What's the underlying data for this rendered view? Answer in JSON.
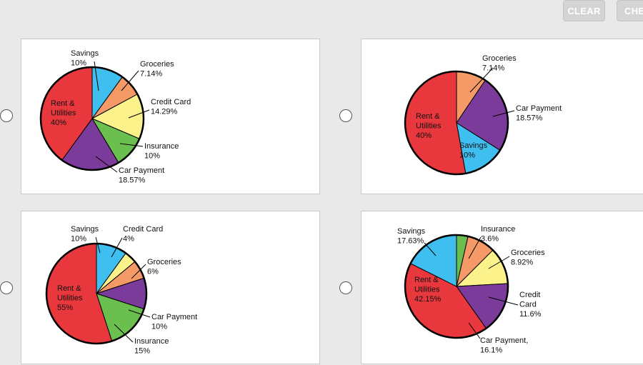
{
  "toolbar": {
    "clear_label": "CLEAR",
    "check_label": "CHE"
  },
  "colors": {
    "rent": "#e8383d",
    "savings": "#3fbfef",
    "groceries": "#f59a66",
    "credit_card": "#fbf28b",
    "insurance": "#6bbf4e",
    "car_payment": "#7b3b9a"
  },
  "chart_data": [
    {
      "type": "pie",
      "slices": [
        {
          "name": "Savings",
          "value": 10,
          "color": "#3fbfef",
          "lines": [
            "Savings",
            "10%"
          ]
        },
        {
          "name": "Groceries",
          "value": 7.14,
          "color": "#f59a66",
          "lines": [
            "Groceries",
            "7.14%"
          ]
        },
        {
          "name": "Credit Card",
          "value": 14.29,
          "color": "#fbf28b",
          "lines": [
            "Credit Card",
            "14.29%"
          ]
        },
        {
          "name": "Insurance",
          "value": 10,
          "color": "#6bbf4e",
          "lines": [
            "Insurance",
            "10%"
          ]
        },
        {
          "name": "Car Payment",
          "value": 18.57,
          "color": "#7b3b9a",
          "lines": [
            "Car Payment",
            "18.57%"
          ]
        },
        {
          "name": "Rent & Utilities",
          "value": 40,
          "color": "#e8383d",
          "lines": [
            "Rent &",
            "Utilities",
            "40%"
          ]
        }
      ]
    },
    {
      "type": "pie",
      "slices": [
        {
          "name": "Groceries",
          "value": 7.14,
          "color": "#f59a66",
          "lines": [
            "Groceries",
            "7.14%"
          ]
        },
        {
          "name": "Car Payment",
          "value": 18.57,
          "color": "#7b3b9a",
          "lines": [
            "Car Payment",
            "18.57%"
          ]
        },
        {
          "name": "Savings",
          "value": 10,
          "color": "#3fbfef",
          "lines": [
            "Savings",
            "10%"
          ]
        },
        {
          "name": "Rent & Utilities",
          "value": 40,
          "color": "#e8383d",
          "lines": [
            "Rent &",
            "Utilities",
            "40%"
          ]
        }
      ]
    },
    {
      "type": "pie",
      "slices": [
        {
          "name": "Savings",
          "value": 10,
          "color": "#3fbfef",
          "lines": [
            "Savings",
            "10%"
          ]
        },
        {
          "name": "Credit Card",
          "value": 4,
          "color": "#fbf28b",
          "lines": [
            "Credit Card",
            "4%"
          ]
        },
        {
          "name": "Groceries",
          "value": 6,
          "color": "#f59a66",
          "lines": [
            "Groceries",
            "6%"
          ]
        },
        {
          "name": "Car Payment",
          "value": 10,
          "color": "#7b3b9a",
          "lines": [
            "Car Payment",
            "10%"
          ]
        },
        {
          "name": "Insurance",
          "value": 15,
          "color": "#6bbf4e",
          "lines": [
            "Insurance",
            "15%"
          ]
        },
        {
          "name": "Rent & Utilities",
          "value": 55,
          "color": "#e8383d",
          "lines": [
            "Rent &",
            "Utilities",
            "55%"
          ]
        }
      ]
    },
    {
      "type": "pie",
      "slices": [
        {
          "name": "Insurance",
          "value": 3.6,
          "color": "#6bbf4e",
          "lines": [
            "Insurance",
            "3.6%"
          ]
        },
        {
          "name": "Groceries",
          "value": 8.92,
          "color": "#f59a66",
          "lines": [
            "Groceries",
            "8.92%"
          ]
        },
        {
          "name": "Credit Card",
          "value": 11.6,
          "color": "#fbf28b",
          "lines": [
            "Credit",
            "Card",
            "11.6%"
          ]
        },
        {
          "name": "Car Payment",
          "value": 16.1,
          "color": "#7b3b9a",
          "lines": [
            "Car Payment,",
            "16.1%"
          ]
        },
        {
          "name": "Rent & Utilities",
          "value": 42.15,
          "color": "#e8383d",
          "lines": [
            "Rent &",
            "Utilities",
            "42.15%"
          ]
        },
        {
          "name": "Savings",
          "value": 17.63,
          "color": "#3fbfef",
          "lines": [
            "Savings",
            "17.63%"
          ]
        }
      ]
    }
  ]
}
